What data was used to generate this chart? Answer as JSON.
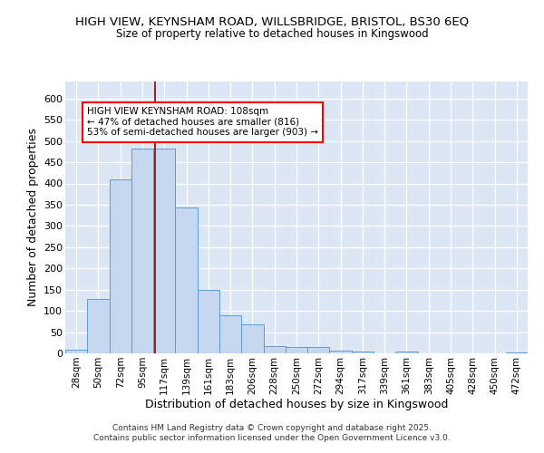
{
  "title1": "HIGH VIEW, KEYNSHAM ROAD, WILLSBRIDGE, BRISTOL, BS30 6EQ",
  "title2": "Size of property relative to detached houses in Kingswood",
  "xlabel": "Distribution of detached houses by size in Kingswood",
  "ylabel": "Number of detached properties",
  "bar_color": "#c5d8f0",
  "bar_edge_color": "#5b9bd5",
  "bg_color": "#dce6f5",
  "grid_color": "#ffffff",
  "categories": [
    "28sqm",
    "50sqm",
    "72sqm",
    "95sqm",
    "117sqm",
    "139sqm",
    "161sqm",
    "183sqm",
    "206sqm",
    "228sqm",
    "250sqm",
    "272sqm",
    "294sqm",
    "317sqm",
    "339sqm",
    "361sqm",
    "383sqm",
    "405sqm",
    "428sqm",
    "450sqm",
    "472sqm"
  ],
  "values": [
    8,
    128,
    410,
    483,
    483,
    343,
    150,
    90,
    68,
    18,
    14,
    15,
    6,
    4,
    1,
    4,
    0,
    0,
    0,
    0,
    3
  ],
  "ylim": [
    0,
    640
  ],
  "yticks": [
    0,
    50,
    100,
    150,
    200,
    250,
    300,
    350,
    400,
    450,
    500,
    550,
    600
  ],
  "annotation_title": "HIGH VIEW KEYNSHAM ROAD: 108sqm",
  "annotation_line1": "← 47% of detached houses are smaller (816)",
  "annotation_line2": "53% of semi-detached houses are larger (903) →",
  "footer1": "Contains HM Land Registry data © Crown copyright and database right 2025.",
  "footer2": "Contains public sector information licensed under the Open Government Licence v3.0."
}
